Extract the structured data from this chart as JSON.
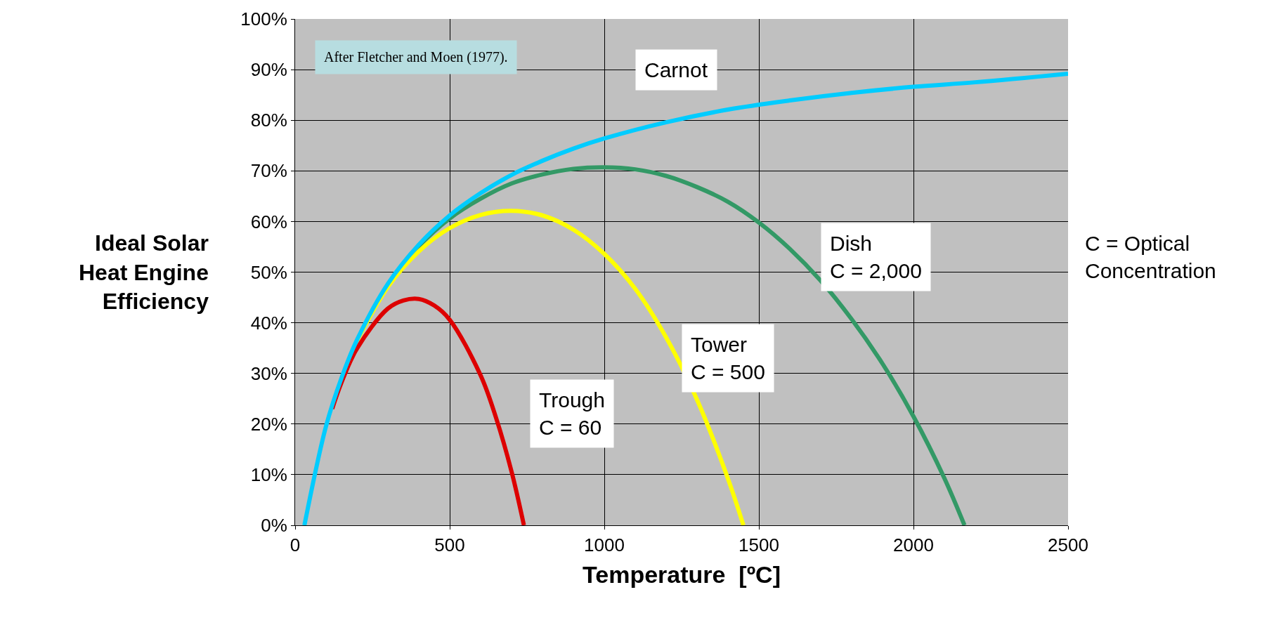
{
  "chart_data": {
    "type": "line",
    "xlabel": "Temperature  [ºC]",
    "ylabel": "Ideal Solar\nHeat Engine\nEfficiency",
    "xlim": [
      0,
      2500
    ],
    "xticks": [
      0,
      500,
      1000,
      1500,
      2000,
      2500
    ],
    "ylim": [
      0,
      100
    ],
    "yticks": [
      {
        "value": 0,
        "label": "0%"
      },
      {
        "value": 10,
        "label": "10%"
      },
      {
        "value": 20,
        "label": "20%"
      },
      {
        "value": 30,
        "label": "30%"
      },
      {
        "value": 40,
        "label": "40%"
      },
      {
        "value": 50,
        "label": "50%"
      },
      {
        "value": 60,
        "label": "60%"
      },
      {
        "value": 70,
        "label": "70%"
      },
      {
        "value": 80,
        "label": "80%"
      },
      {
        "value": 90,
        "label": "90%"
      },
      {
        "value": 100,
        "label": "100%"
      }
    ],
    "grid": true,
    "legend": false,
    "marker": "none",
    "line_style": "solid",
    "series": [
      {
        "name": "Carnot",
        "color": "#00ccff",
        "x": [
          30,
          100,
          150,
          200,
          300,
          400,
          500,
          600,
          700,
          800,
          900,
          1000,
          1200,
          1400,
          1600,
          1800,
          2000,
          2200,
          2500
        ],
        "values": [
          0,
          19.6,
          29.1,
          36.6,
          47.7,
          55.4,
          61.2,
          65.6,
          69.2,
          72.0,
          74.4,
          76.4,
          79.6,
          82.1,
          83.9,
          85.4,
          86.6,
          87.5,
          89.2
        ]
      },
      {
        "name": "Dish\nC = 2,000",
        "color": "#339966",
        "x": [
          300,
          400,
          500,
          600,
          700,
          800,
          900,
          1000,
          1100,
          1200,
          1300,
          1400,
          1500,
          1600,
          1700,
          1800,
          1900,
          2000,
          2100,
          2165
        ],
        "values": [
          47.6,
          55.1,
          60.6,
          64.5,
          67.5,
          69.3,
          70.4,
          70.7,
          70.3,
          69.0,
          66.8,
          63.9,
          59.8,
          54.6,
          48.3,
          40.7,
          31.9,
          21.5,
          9.3,
          0
        ]
      },
      {
        "name": "Tower\nC = 500",
        "color": "#ffff00",
        "x": [
          200,
          300,
          400,
          500,
          600,
          700,
          800,
          900,
          1000,
          1100,
          1200,
          1300,
          1400,
          1450
        ],
        "values": [
          36.4,
          47.1,
          54.1,
          58.7,
          61.3,
          62.1,
          61.2,
          58.4,
          53.6,
          46.7,
          37.1,
          24.8,
          9.2,
          0
        ]
      },
      {
        "name": "Trough\nC = 60",
        "color": "#dd0000",
        "x": [
          120,
          150,
          200,
          300,
          350,
          400,
          450,
          500,
          600,
          650,
          700,
          740
        ],
        "values": [
          23.0,
          28.2,
          34.9,
          42.8,
          44.4,
          44.7,
          43.4,
          40.6,
          29.6,
          21.2,
          10.6,
          0
        ]
      }
    ],
    "annotations": [
      "After Fletcher and Moen (1977).",
      "C = Optical Concentration"
    ]
  }
}
